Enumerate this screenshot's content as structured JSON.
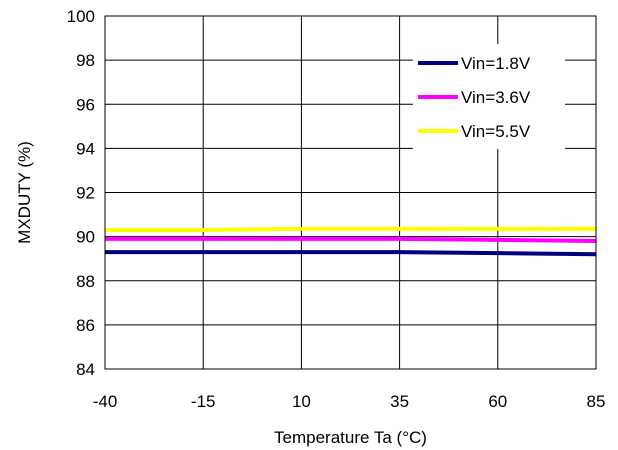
{
  "chart_data": {
    "type": "line",
    "title": "",
    "xlabel": "Temperature Ta (°C)",
    "ylabel": "MXDUTY (%)",
    "x": [
      -40,
      -15,
      10,
      35,
      60,
      85
    ],
    "x_ticks": [
      "-40",
      "-15",
      "10",
      "35",
      "60",
      "85"
    ],
    "y_ticks": [
      "84",
      "86",
      "88",
      "90",
      "92",
      "94",
      "96",
      "98",
      "100"
    ],
    "xlim": [
      -40,
      85
    ],
    "ylim": [
      84,
      100
    ],
    "grid": true,
    "legend_position": "top-right",
    "series": [
      {
        "name": "Vin=1.8V",
        "color": "#000080",
        "values": [
          89.3,
          89.3,
          89.3,
          89.3,
          89.25,
          89.2
        ]
      },
      {
        "name": "Vin=3.6V",
        "color": "#ff00ff",
        "values": [
          89.9,
          89.9,
          89.9,
          89.9,
          89.85,
          89.8
        ]
      },
      {
        "name": "Vin=5.5V",
        "color": "#ffff00",
        "values": [
          90.3,
          90.3,
          90.35,
          90.35,
          90.35,
          90.35
        ]
      }
    ]
  }
}
